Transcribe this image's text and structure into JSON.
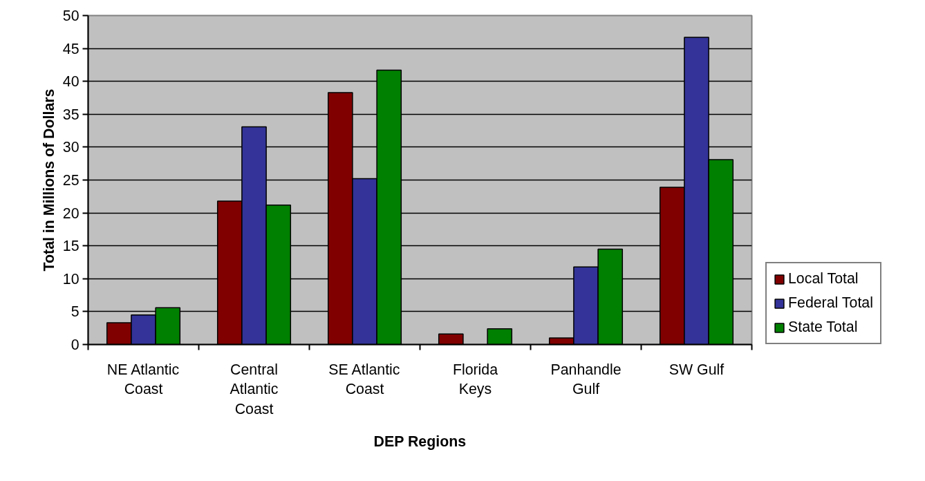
{
  "chart_data": {
    "type": "bar",
    "xlabel": "DEP Regions",
    "ylabel": "Total in Millions of Dollars",
    "categories": [
      "NE Atlantic Coast",
      "Central Atlantic Coast",
      "SE Atlantic Coast",
      "Florida Keys",
      "Panhandle Gulf",
      "SW Gulf"
    ],
    "series": [
      {
        "name": "Local Total",
        "color": "#800000",
        "values": [
          3.3,
          21.8,
          38.3,
          1.6,
          1.0,
          23.9
        ]
      },
      {
        "name": "Federal Total",
        "color": "#333399",
        "values": [
          4.5,
          33.1,
          25.2,
          null,
          11.8,
          46.7
        ]
      },
      {
        "name": "State Total",
        "color": "#008000",
        "values": [
          5.6,
          21.2,
          41.7,
          2.4,
          14.5,
          28.1
        ]
      }
    ],
    "ylim": [
      0,
      50
    ],
    "yticks": [
      0,
      5,
      10,
      15,
      20,
      25,
      30,
      35,
      40,
      45,
      50
    ],
    "grid": "y",
    "legend": "bottom right"
  }
}
